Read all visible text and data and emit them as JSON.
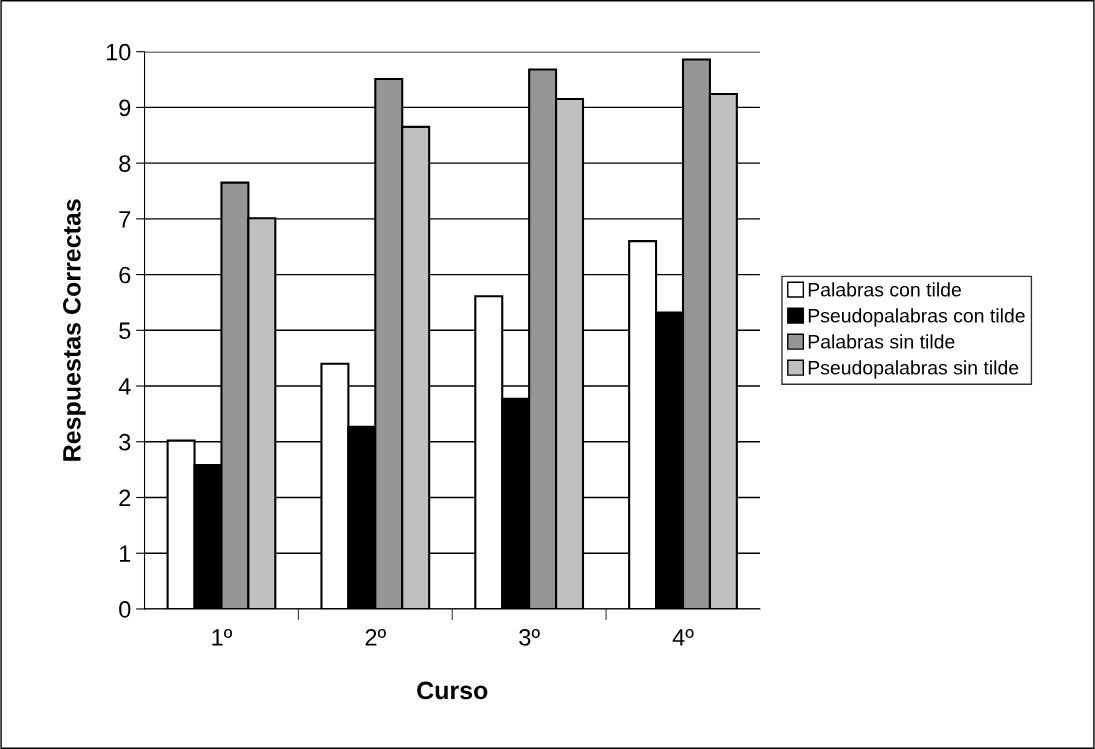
{
  "chart_data": {
    "type": "bar",
    "xlabel": "Curso",
    "ylabel": "Respuestas Correctas",
    "categories": [
      "1º",
      "2º",
      "3º",
      "4º"
    ],
    "series": [
      {
        "name": "Palabras con tilde",
        "color": "#ffffff",
        "values": [
          3.02,
          4.4,
          5.61,
          6.6
        ]
      },
      {
        "name": "Pseudopalabras con tilde",
        "color": "#000000",
        "values": [
          2.58,
          3.27,
          3.77,
          5.32
        ]
      },
      {
        "name": "Palabras sin tilde",
        "color": "#969696",
        "values": [
          7.65,
          9.51,
          9.68,
          9.86
        ]
      },
      {
        "name": "Pseudopalabras sin tilde",
        "color": "#c0c0c0",
        "values": [
          7.01,
          8.65,
          9.15,
          9.24
        ]
      }
    ],
    "ylim": [
      0,
      10
    ],
    "yticks": [
      0,
      1,
      2,
      3,
      4,
      5,
      6,
      7,
      8,
      9,
      10
    ],
    "grid": "y",
    "legend": "right"
  }
}
